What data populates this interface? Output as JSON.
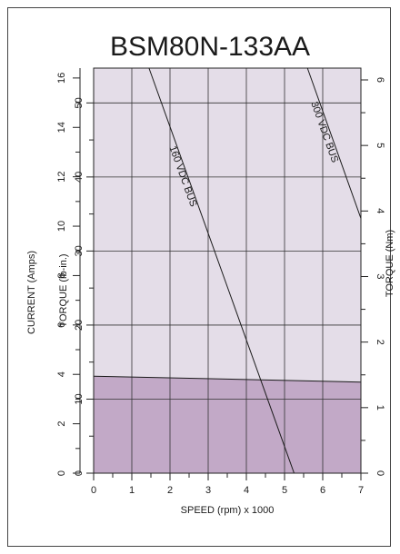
{
  "chart_data": {
    "type": "line",
    "title": "BSM80N-133AA",
    "xlabel": "SPEED (rpm) x 1000",
    "xlim": [
      0,
      7
    ],
    "x_ticks": [
      "0",
      "1",
      "2",
      "3",
      "4",
      "5",
      "6",
      "7"
    ],
    "left_axis_outer": {
      "label": "CURRENT (Amps)",
      "lim": [
        0,
        16.4
      ],
      "ticks": [
        "0",
        "2",
        "4",
        "6",
        "8",
        "10",
        "12",
        "14",
        "16"
      ]
    },
    "left_axis_inner": {
      "label": "TORQUE (lb-in.)",
      "lim": [
        0,
        54.7
      ],
      "ticks": [
        "0",
        "10",
        "20",
        "30",
        "40",
        "50"
      ]
    },
    "right_axis": {
      "label": "TORQUE (Nm)",
      "lim": [
        0,
        6.18
      ],
      "ticks": [
        "0",
        "1",
        "2",
        "3",
        "4",
        "5",
        "6"
      ]
    },
    "grid": true,
    "colors": {
      "intermittent_zone": "#e4dde8",
      "continuous_zone": "#c2a9c7",
      "line": "#1a1a1a"
    },
    "series": [
      {
        "name": "160 VDC BUS",
        "x": [
          1.45,
          5.25
        ],
        "y": [
          54.7,
          0
        ]
      },
      {
        "name": "300 VDC BUS",
        "x": [
          5.6,
          7.0
        ],
        "y": [
          54.7,
          34.4
        ]
      },
      {
        "name": "",
        "x": [
          0,
          7.0
        ],
        "y": [
          13.1,
          12.3
        ]
      }
    ]
  }
}
